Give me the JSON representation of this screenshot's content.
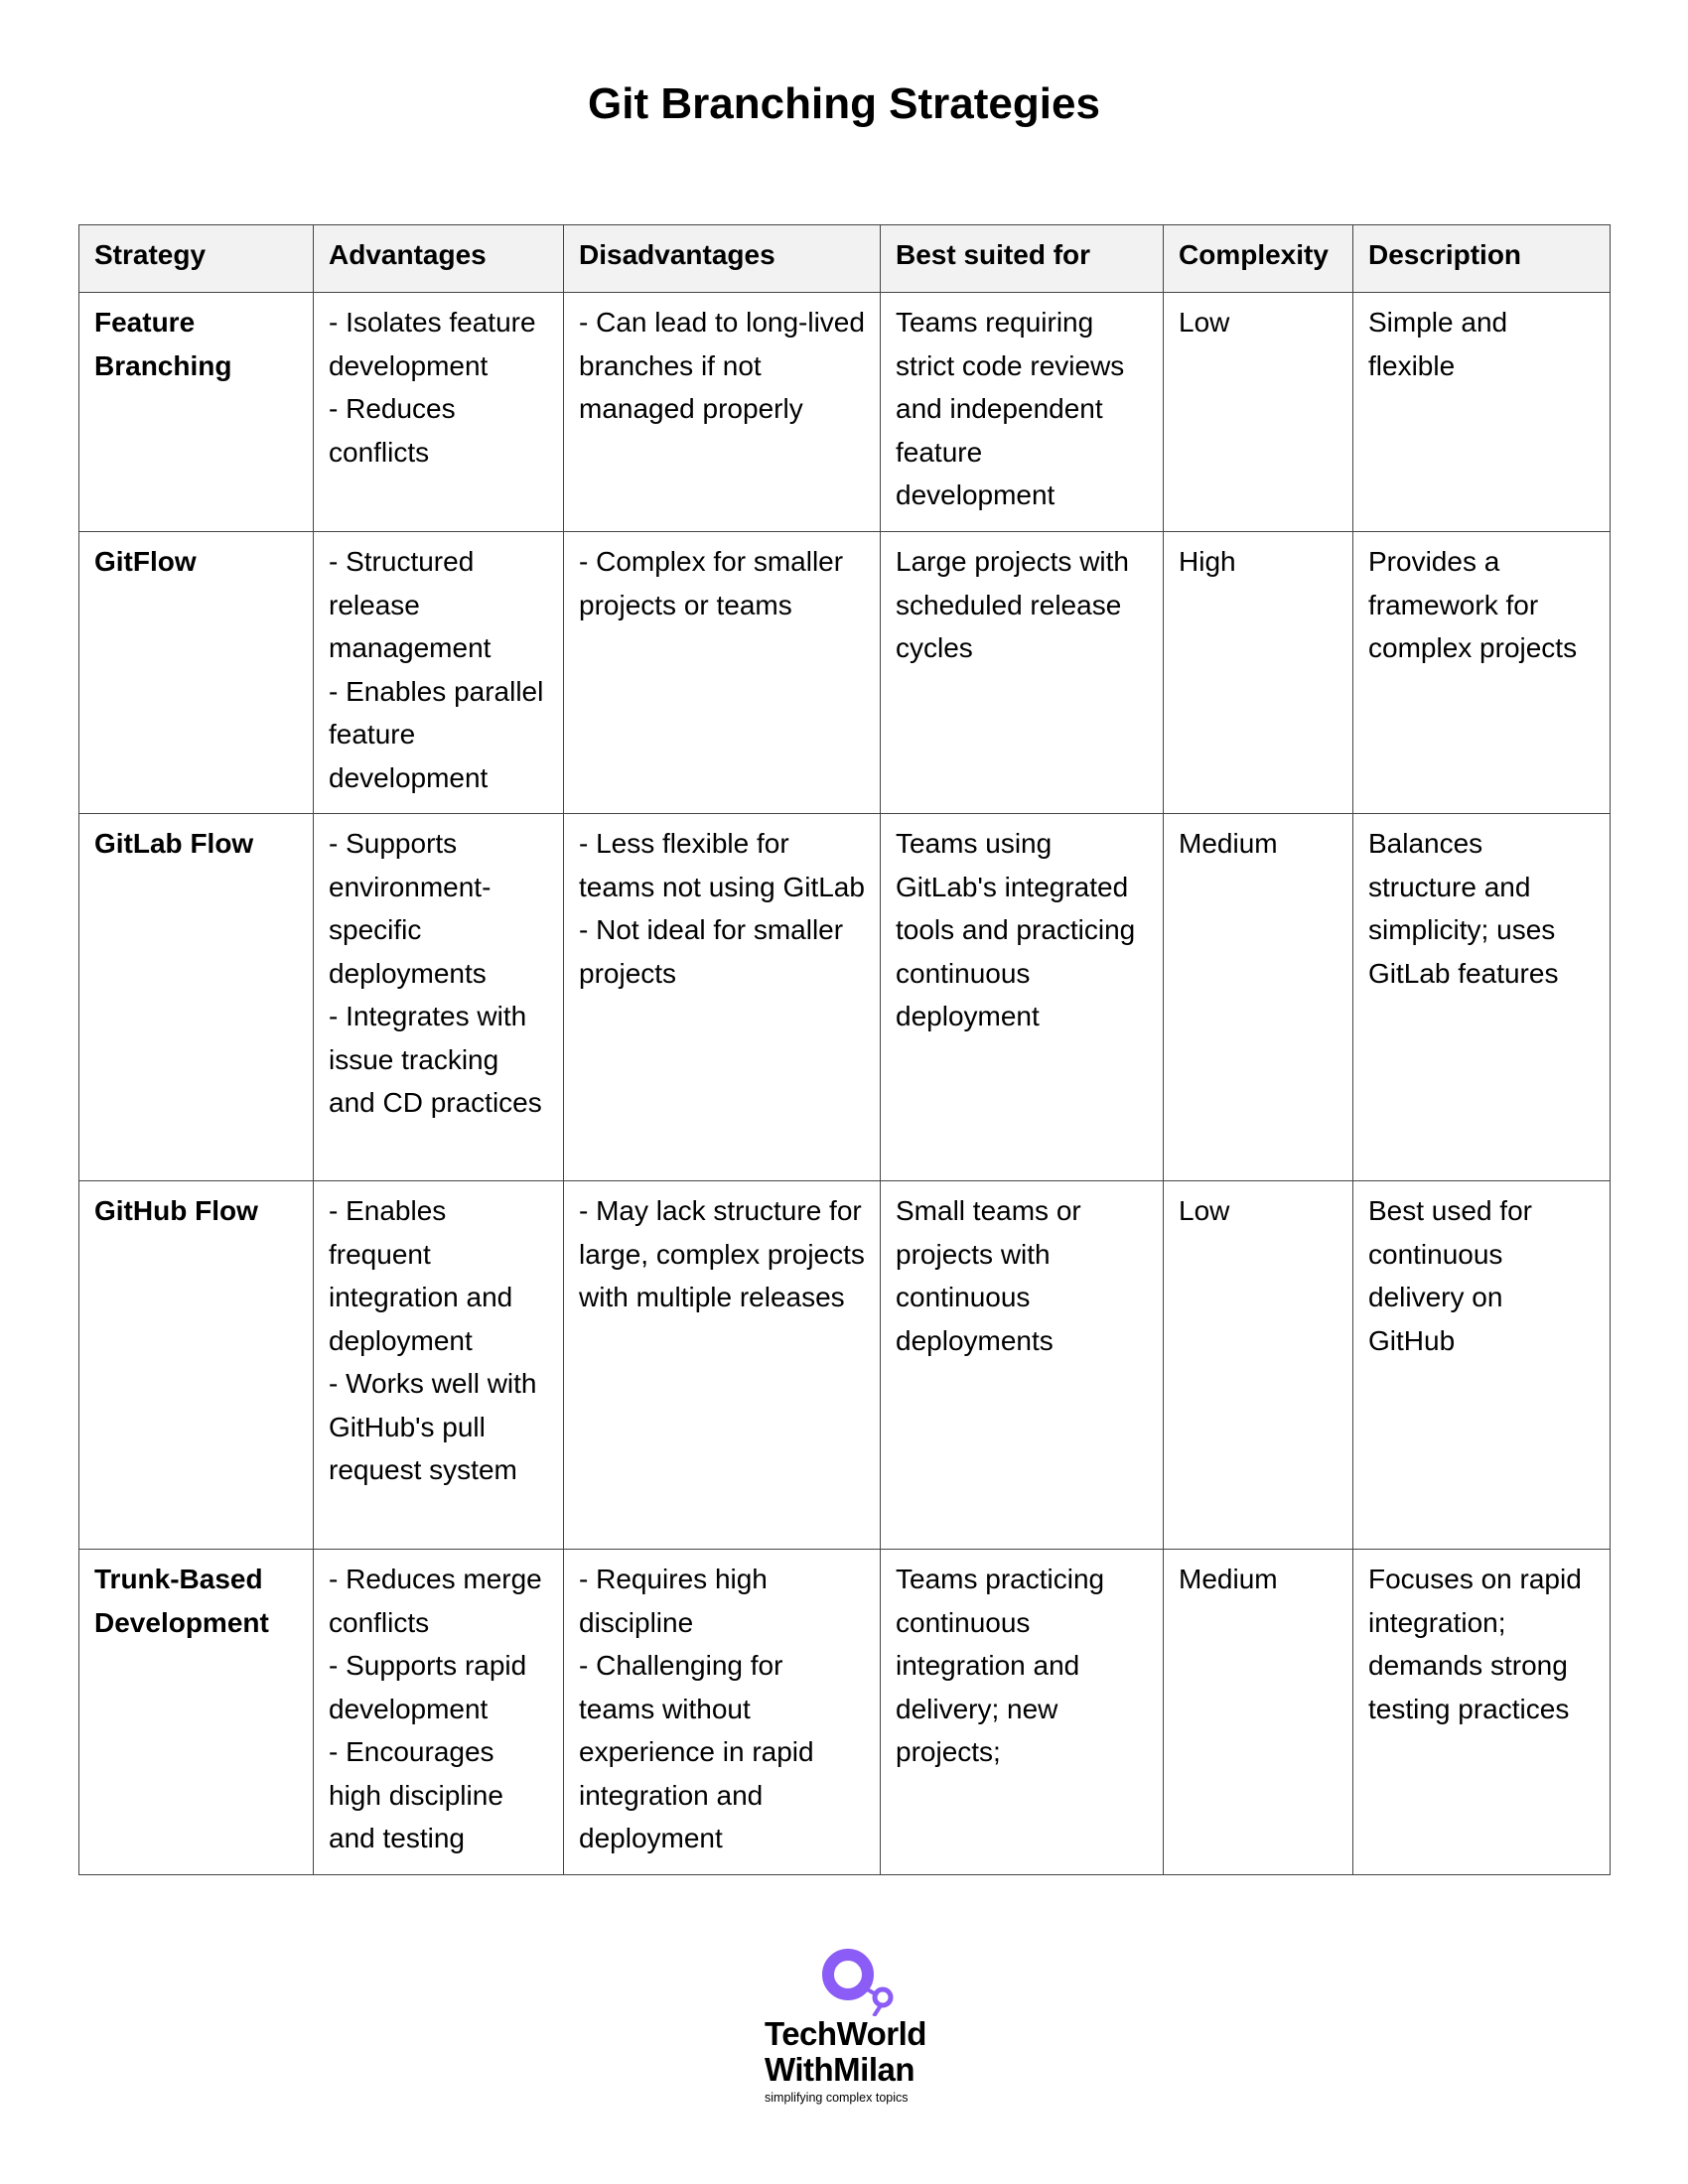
{
  "title": "Git Branching Strategies",
  "table": {
    "headers": [
      "Strategy",
      "Advantages",
      "Disadvantages",
      "Best suited for",
      "Complexity",
      "Description"
    ],
    "rows": [
      {
        "strategy": "Feature Branching",
        "advantages": [
          "- Isolates feature development",
          "- Reduces conflicts"
        ],
        "disadvantages": [
          "- Can lead to long-lived branches if not managed properly"
        ],
        "best_suited_for": "Teams requiring strict code reviews and independent feature development",
        "complexity": "Low",
        "description": "Simple and flexible"
      },
      {
        "strategy": "GitFlow",
        "advantages": [
          "- Structured release management",
          "- Enables parallel feature development"
        ],
        "disadvantages": [
          "- Complex for smaller projects or teams"
        ],
        "best_suited_for": "Large projects with scheduled release cycles",
        "complexity": "High",
        "description": "Provides a framework for complex projects"
      },
      {
        "strategy": "GitLab Flow",
        "advantages": [
          "- Supports environment-specific deployments",
          "- Integrates with issue tracking and CD practices"
        ],
        "disadvantages": [
          "- Less flexible for teams not using GitLab",
          "- Not ideal for smaller projects"
        ],
        "best_suited_for": "Teams using GitLab's integrated tools and practicing continuous deployment",
        "complexity": "Medium",
        "description": "Balances structure and simplicity; uses GitLab features"
      },
      {
        "strategy": "GitHub Flow",
        "advantages": [
          "- Enables frequent integration and deployment",
          "- Works well with GitHub's pull request system"
        ],
        "disadvantages": [
          "- May lack structure for large, complex projects with multiple releases"
        ],
        "best_suited_for": "Small teams or projects with continuous deployments",
        "complexity": "Low",
        "description": "Best used for continuous delivery on GitHub"
      },
      {
        "strategy": "Trunk-Based Development",
        "advantages": [
          "- Reduces merge conflicts",
          "- Supports rapid development",
          "- Encourages high discipline and testing"
        ],
        "disadvantages": [
          "- Requires high discipline",
          "- Challenging for teams without experience in rapid integration and deployment"
        ],
        "best_suited_for": "Teams practicing continuous integration and delivery; new projects;",
        "complexity": "Medium",
        "description": "Focuses on rapid integration; demands strong testing practices"
      }
    ]
  },
  "logo": {
    "line1": "TechWorld",
    "line2": "WithMilan",
    "tagline": "simplifying complex topics",
    "color": "#8b5cf6"
  }
}
